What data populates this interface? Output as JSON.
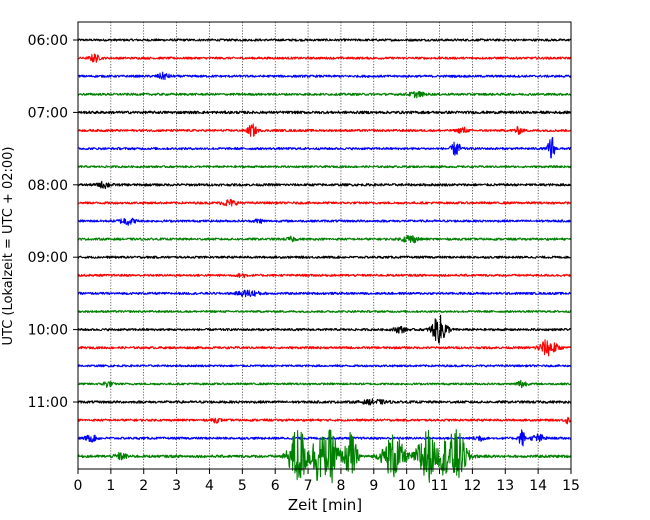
{
  "chart_data": {
    "type": "line",
    "chart_kind": "helicorder",
    "xlabel": "Zeit  [min]",
    "ylabel": "UTC (Lokalzeit = UTC + 02:00)",
    "xlim": [
      0,
      15
    ],
    "x_ticks": [
      "0",
      "1",
      "2",
      "3",
      "4",
      "5",
      "6",
      "7",
      "8",
      "9",
      "10",
      "11",
      "12",
      "13",
      "14",
      "15"
    ],
    "y_ticks": [
      "06:00",
      "07:00",
      "08:00",
      "09:00",
      "10:00",
      "11:00"
    ],
    "grid": "vertical dotted lines at each minute",
    "trace_interval_minutes": 15,
    "trace_colors": [
      "#000000",
      "#ff0000",
      "#0000ff",
      "#008000"
    ],
    "traces": [
      {
        "start": "06:00",
        "noise": 1.0,
        "events": []
      },
      {
        "start": "06:15",
        "noise": 1.0,
        "events": [
          {
            "t": 0.5,
            "amp": 4,
            "dur": 0.3
          }
        ]
      },
      {
        "start": "06:30",
        "noise": 1.0,
        "events": [
          {
            "t": 2.6,
            "amp": 3,
            "dur": 0.4
          }
        ]
      },
      {
        "start": "06:45",
        "noise": 1.0,
        "events": [
          {
            "t": 10.3,
            "amp": 2.5,
            "dur": 0.5
          }
        ]
      },
      {
        "start": "07:00",
        "noise": 1.2,
        "events": []
      },
      {
        "start": "07:15",
        "noise": 1.0,
        "events": [
          {
            "t": 5.3,
            "amp": 6,
            "dur": 0.3
          },
          {
            "t": 11.7,
            "amp": 3,
            "dur": 0.3
          },
          {
            "t": 13.4,
            "amp": 3,
            "dur": 0.3
          }
        ]
      },
      {
        "start": "07:30",
        "noise": 1.0,
        "events": [
          {
            "t": 11.5,
            "amp": 7,
            "dur": 0.3
          },
          {
            "t": 14.4,
            "amp": 15,
            "dur": 0.2
          }
        ]
      },
      {
        "start": "07:45",
        "noise": 0.9,
        "events": []
      },
      {
        "start": "08:00",
        "noise": 1.1,
        "events": [
          {
            "t": 0.8,
            "amp": 3,
            "dur": 0.4
          }
        ]
      },
      {
        "start": "08:15",
        "noise": 1.0,
        "events": [
          {
            "t": 4.6,
            "amp": 3,
            "dur": 0.5
          }
        ]
      },
      {
        "start": "08:30",
        "noise": 1.0,
        "events": [
          {
            "t": 1.5,
            "amp": 3.5,
            "dur": 0.5
          },
          {
            "t": 5.5,
            "amp": 2,
            "dur": 0.3
          }
        ]
      },
      {
        "start": "08:45",
        "noise": 1.0,
        "events": [
          {
            "t": 6.5,
            "amp": 2,
            "dur": 0.3
          },
          {
            "t": 10.1,
            "amp": 4,
            "dur": 0.5
          }
        ]
      },
      {
        "start": "09:00",
        "noise": 1.0,
        "events": []
      },
      {
        "start": "09:15",
        "noise": 1.0,
        "events": [
          {
            "t": 5.0,
            "amp": 2,
            "dur": 0.3
          }
        ]
      },
      {
        "start": "09:30",
        "noise": 1.0,
        "events": [
          {
            "t": 5.2,
            "amp": 3,
            "dur": 0.7
          }
        ]
      },
      {
        "start": "09:45",
        "noise": 0.9,
        "events": []
      },
      {
        "start": "10:00",
        "noise": 1.0,
        "events": [
          {
            "t": 9.8,
            "amp": 3,
            "dur": 0.4
          },
          {
            "t": 11.0,
            "amp": 14,
            "dur": 0.5
          }
        ]
      },
      {
        "start": "10:15",
        "noise": 1.0,
        "events": [
          {
            "t": 14.3,
            "amp": 8,
            "dur": 0.6
          }
        ]
      },
      {
        "start": "10:30",
        "noise": 0.9,
        "events": []
      },
      {
        "start": "10:45",
        "noise": 0.9,
        "events": [
          {
            "t": 0.9,
            "amp": 3,
            "dur": 0.3
          },
          {
            "t": 13.5,
            "amp": 4,
            "dur": 0.3
          }
        ]
      },
      {
        "start": "11:00",
        "noise": 1.1,
        "events": [
          {
            "t": 9.0,
            "amp": 2,
            "dur": 0.8
          }
        ]
      },
      {
        "start": "11:15",
        "noise": 1.0,
        "events": [
          {
            "t": 4.2,
            "amp": 2,
            "dur": 0.3
          },
          {
            "t": 14.9,
            "amp": 3,
            "dur": 0.2
          }
        ]
      },
      {
        "start": "11:30",
        "noise": 1.0,
        "events": [
          {
            "t": 0.4,
            "amp": 3,
            "dur": 0.4
          },
          {
            "t": 12.2,
            "amp": 3,
            "dur": 0.3
          },
          {
            "t": 13.5,
            "amp": 9,
            "dur": 0.2
          },
          {
            "t": 14.0,
            "amp": 4,
            "dur": 0.4
          }
        ]
      },
      {
        "start": "11:45",
        "noise": 1.2,
        "events": [
          {
            "t": 6.7,
            "amp": 30,
            "dur": 0.6
          },
          {
            "t": 7.3,
            "amp": 25,
            "dur": 0.4
          },
          {
            "t": 7.7,
            "amp": 26,
            "dur": 0.5
          },
          {
            "t": 8.3,
            "amp": 24,
            "dur": 0.4
          },
          {
            "t": 9.6,
            "amp": 22,
            "dur": 0.7
          },
          {
            "t": 10.6,
            "amp": 28,
            "dur": 0.6
          },
          {
            "t": 11.5,
            "amp": 26,
            "dur": 0.7
          },
          {
            "t": 11.1,
            "amp": 12,
            "dur": 0.3
          },
          {
            "t": 1.3,
            "amp": 3,
            "dur": 0.4
          }
        ]
      }
    ]
  }
}
